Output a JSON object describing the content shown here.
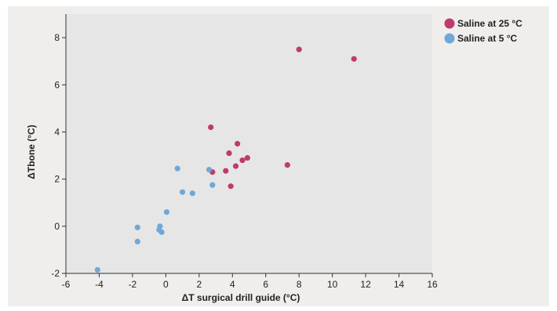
{
  "chart_data": {
    "type": "scatter",
    "xlabel": "ΔT surgical drill guide  (°C)",
    "ylabel": "ΔTbone  (°C)",
    "xlim": [
      -6,
      16
    ],
    "ylim": [
      -2,
      9
    ],
    "xticks": [
      -6,
      -4,
      -2,
      0,
      2,
      4,
      6,
      8,
      10,
      12,
      14,
      16
    ],
    "yticks": [
      -2,
      0,
      2,
      4,
      6,
      8
    ],
    "grid": false,
    "legend_position": "top-right, outside plot",
    "series": [
      {
        "name": "Saline at 25 °C",
        "color": "#c0396f",
        "points": [
          [
            2.7,
            4.2
          ],
          [
            2.8,
            2.3
          ],
          [
            3.6,
            2.35
          ],
          [
            3.8,
            3.1
          ],
          [
            3.9,
            1.7
          ],
          [
            4.2,
            2.55
          ],
          [
            4.3,
            3.5
          ],
          [
            4.6,
            2.8
          ],
          [
            4.9,
            2.9
          ],
          [
            7.3,
            2.6
          ],
          [
            8.0,
            7.5
          ],
          [
            11.3,
            7.1
          ]
        ]
      },
      {
        "name": "Saline at 5 °C",
        "color": "#6fa8d8",
        "points": [
          [
            -4.1,
            -1.85
          ],
          [
            -1.7,
            -0.05
          ],
          [
            -1.7,
            -0.65
          ],
          [
            -0.4,
            -0.15
          ],
          [
            -0.35,
            0.0
          ],
          [
            -0.25,
            -0.25
          ],
          [
            0.05,
            0.6
          ],
          [
            0.7,
            2.45
          ],
          [
            1.0,
            1.45
          ],
          [
            1.6,
            1.4
          ],
          [
            2.6,
            2.4
          ],
          [
            2.8,
            1.75
          ]
        ]
      }
    ]
  }
}
